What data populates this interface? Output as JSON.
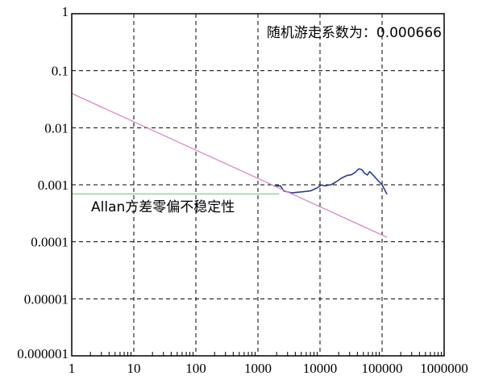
{
  "chart_data": {
    "type": "line",
    "title": "",
    "xlabel": "",
    "ylabel": "",
    "x_scale": "log",
    "y_scale": "log",
    "xlim": [
      1,
      1000000
    ],
    "ylim": [
      1e-06,
      1
    ],
    "grid": true,
    "x_ticks": [
      "1",
      "10",
      "100",
      "1000",
      "10000",
      "100000",
      "1000000"
    ],
    "y_ticks": [
      "0.000001",
      "0.00001",
      "0.0001",
      "0.001",
      "0.01",
      "0.1",
      "1"
    ],
    "annotations": {
      "random_walk": "随机游走系数为：0.000666",
      "bias_instability": "Allan方差零偏不稳定性"
    },
    "series": [
      {
        "color": "#2b3f8c",
        "x": [
          1800,
          2300,
          2600,
          3500,
          5000,
          7000,
          9000,
          10500,
          12000,
          15000,
          18000,
          22000,
          27000,
          32000,
          37000,
          42000,
          47000,
          52000,
          58000,
          63000,
          68000,
          75000,
          85000,
          100000,
          120000
        ],
        "y": [
          0.00095,
          0.00096,
          0.00078,
          0.00072,
          0.00075,
          0.00078,
          0.00088,
          0.00099,
          0.00096,
          0.001,
          0.00112,
          0.0013,
          0.00145,
          0.0015,
          0.00165,
          0.0019,
          0.00185,
          0.0016,
          0.00148,
          0.0017,
          0.00158,
          0.0014,
          0.0012,
          0.001,
          0.00068
        ]
      },
      {
        "color": "#d77ac4",
        "x": [
          1,
          120000
        ],
        "y": [
          0.04,
          0.00012
        ]
      },
      {
        "color": "#88cc88",
        "x": [
          1,
          2200
        ],
        "y": [
          0.00069,
          0.00069
        ]
      }
    ]
  }
}
